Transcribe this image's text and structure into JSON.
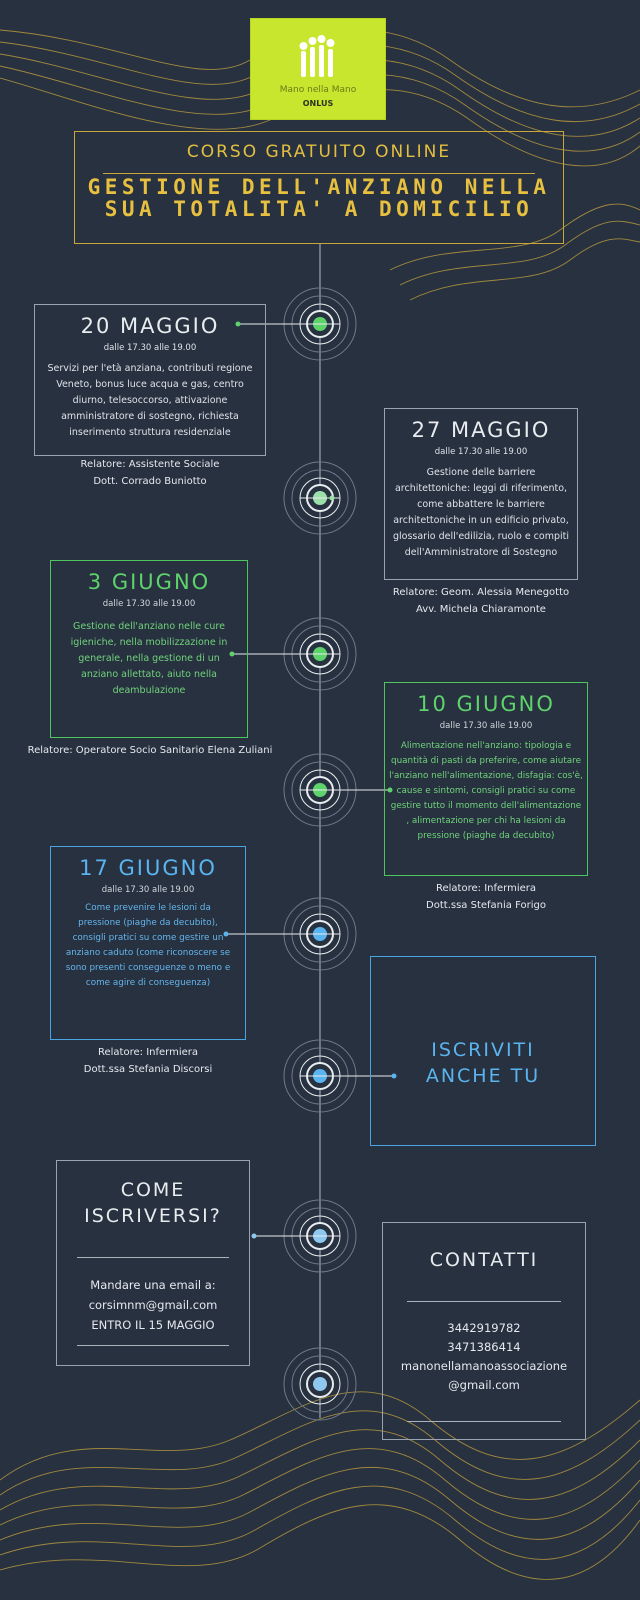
{
  "logo": {
    "name": "Mano nella Mano",
    "suffix": "ONLUS"
  },
  "header": {
    "subtitle": "CORSO GRATUITO ONLINE",
    "title": "GESTIONE DELL'ANZIANO NELLA SUA TOTALITA' A DOMICILIO"
  },
  "events": [
    {
      "date": "20 MAGGIO",
      "time": "dalle 17.30 alle 19.00",
      "description": "Servizi per l'età anziana, contributi regione Veneto, bonus luce acqua e gas, centro diurno, telesoccorso, attivazione amministratore di sostegno, richiesta inserimento struttura residenziale",
      "speaker_1": "Relatore: Assistente Sociale",
      "speaker_2": "Dott. Corrado Buniotto"
    },
    {
      "date": "27 MAGGIO",
      "time": "dalle 17.30 alle 19.00",
      "description": "Gestione delle barriere architettoniche: leggi di riferimento, come abbattere le barriere architettoniche in un edificio privato, glossario dell'edilizia, ruolo e compiti dell'Amministratore di Sostegno",
      "speaker_1": "Relatore: Geom. Alessia Menegotto",
      "speaker_2": "Avv. Michela Chiaramonte"
    },
    {
      "date": "3 GIUGNO",
      "time": "dalle 17.30 alle 19.00",
      "description": "Gestione dell'anziano nelle cure igieniche, nella mobilizzazione in generale, nella gestione di un anziano allettato, aiuto nella deambulazione",
      "speaker_1": "Relatore: Operatore Socio Sanitario Elena Zuliani",
      "speaker_2": ""
    },
    {
      "date": "10 GIUGNO",
      "time": "dalle 17.30 alle 19.00",
      "description": "Alimentazione nell'anziano: tipologia e quantità di pasti da preferire, come aiutare l'anziano nell'alimentazione, disfagia: cos'è, cause e sintomi, consigli pratici su come gestire tutto il momento dell'alimentazione , alimentazione per chi ha lesioni da pressione (piaghe da decubito)",
      "speaker_1": "Relatore: Infermiera",
      "speaker_2": "Dott.ssa Stefania Forigo"
    },
    {
      "date": "17 GIUGNO",
      "time": "dalle 17.30 alle 19.00",
      "description": "Come prevenire le lesioni da pressione (piaghe da decubito), consigli pratici su come gestire un anziano caduto (come riconoscere se sono presenti conseguenze o meno e come agire di conseguenza)",
      "speaker_1": "Relatore: Infermiera",
      "speaker_2": "Dott.ssa Stefania Discorsi"
    }
  ],
  "signup": {
    "cta": "ISCRIVITI ANCHE TU",
    "how_title": "COME ISCRIVERSI?",
    "how_line_1": "Mandare una email a:",
    "how_email": "corsimnm@gmail.com",
    "how_deadline": "ENTRO IL 15 MAGGIO"
  },
  "contacts": {
    "title": "CONTATTI",
    "phone_1": "3442919782",
    "phone_2": "3471386414",
    "email_1": "manonellamanoassociazione",
    "email_2": "@gmail.com"
  },
  "colors": {
    "background": "#283140",
    "gold": "#c9a63c",
    "lime": "#c8e62e",
    "green": "#4ec65e",
    "blue": "#4aa4e2"
  }
}
